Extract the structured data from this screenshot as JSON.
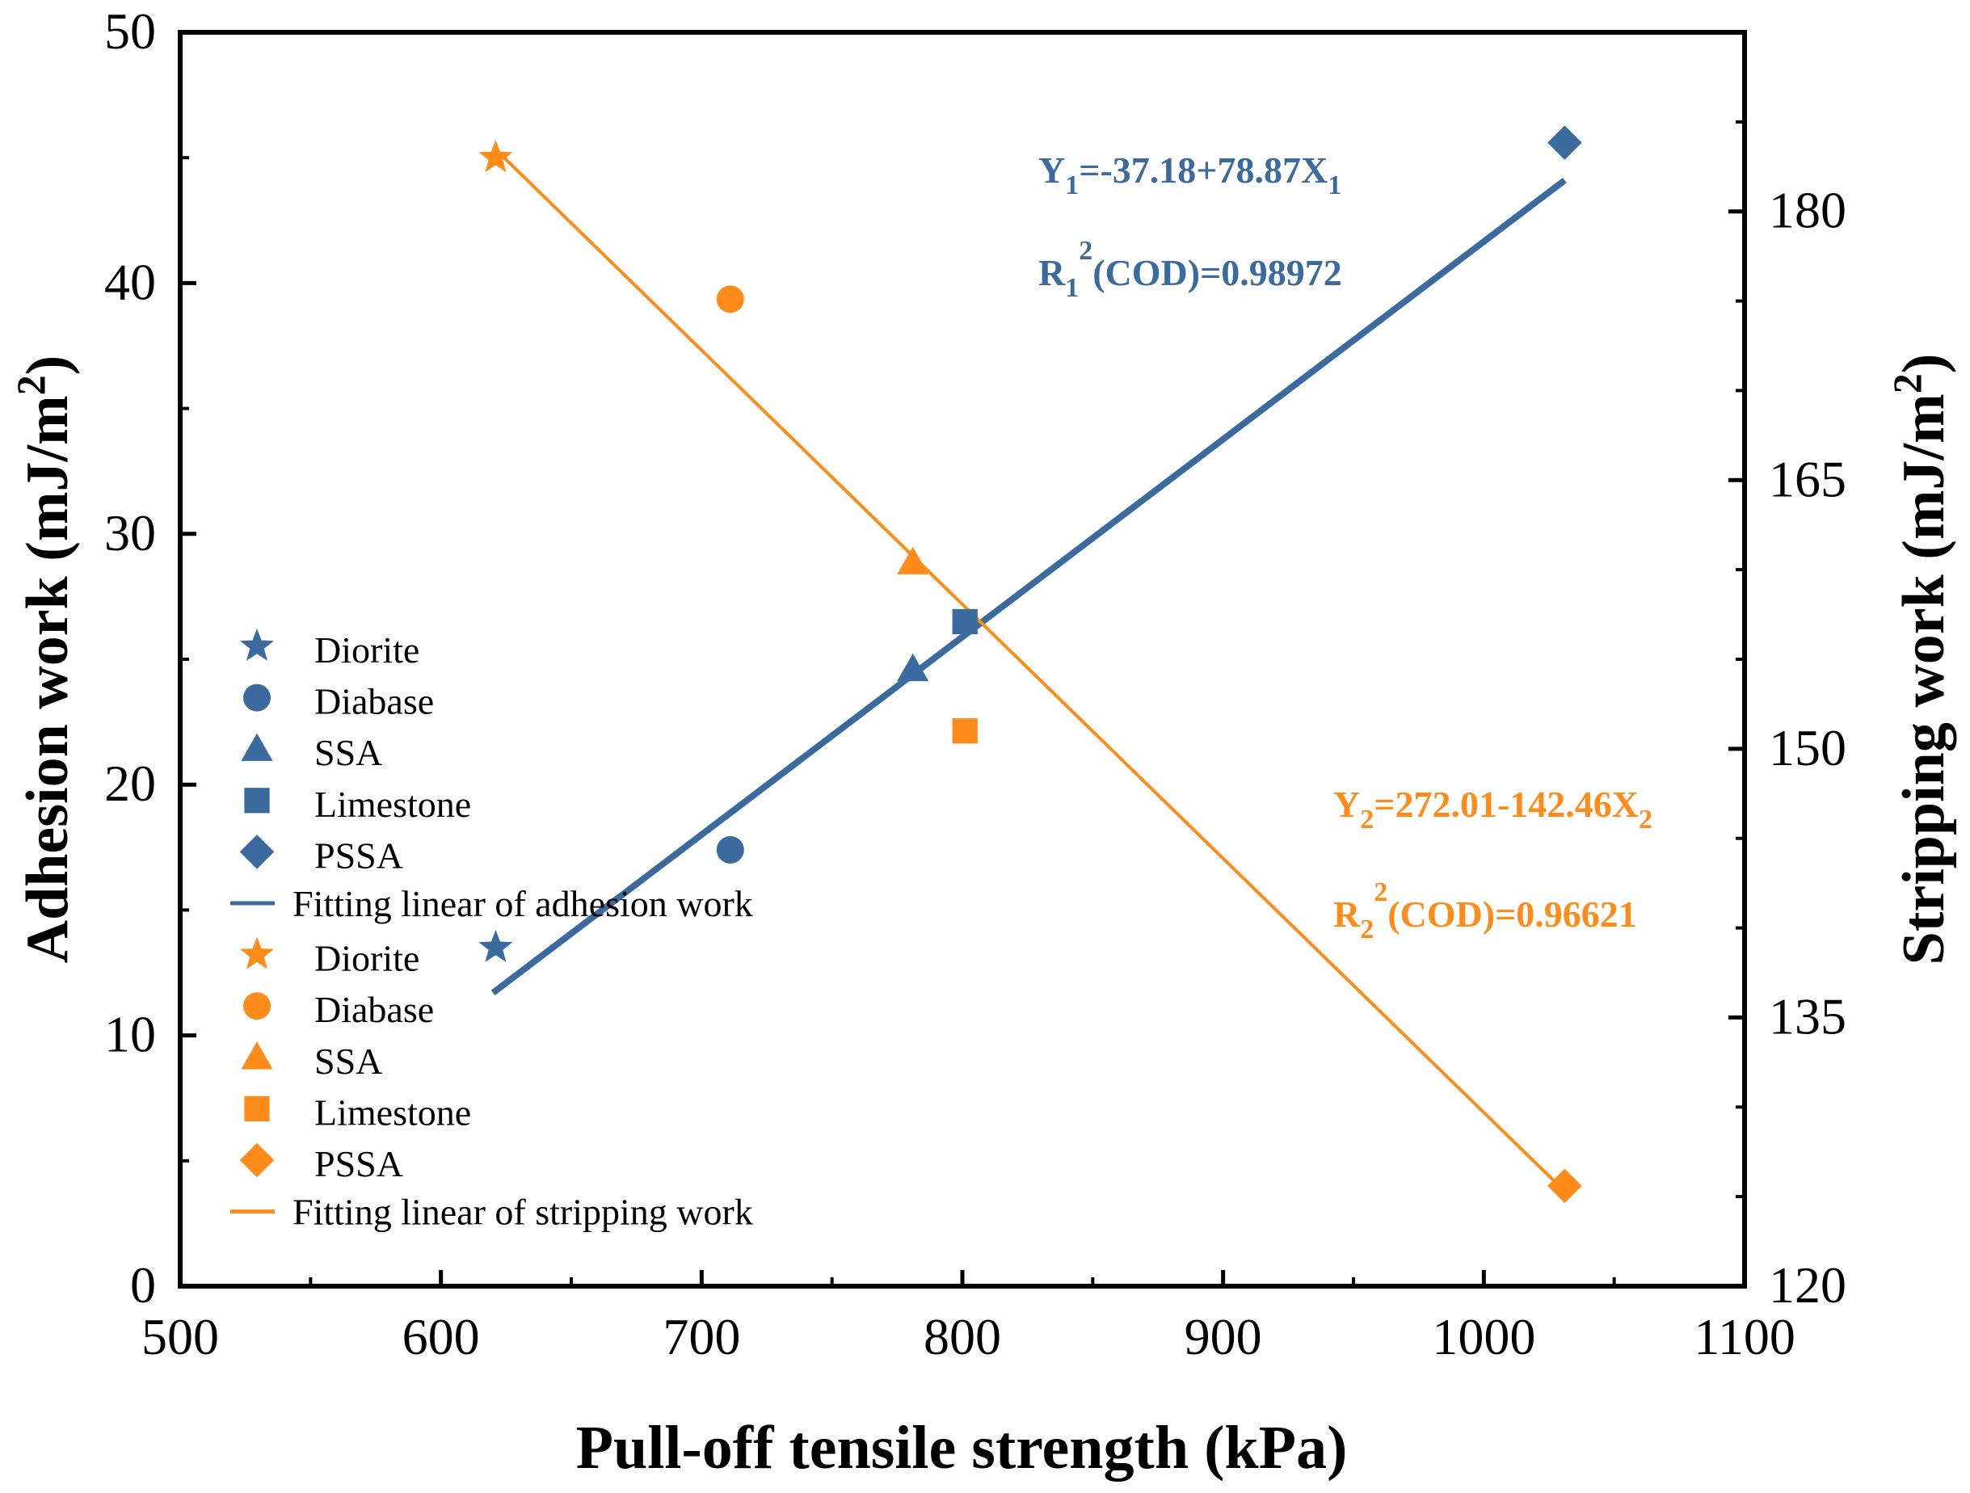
{
  "chart_data": {
    "type": "scatter",
    "xlabel": "Pull-off tensile strength (kPa)",
    "ylabel_left": "Adhesion work (mJ/m",
    "ylabel_right": "Stripping work (mJ/m",
    "ylabel_sup": "2",
    "ylabel_close": ")",
    "x_range": [
      500,
      1100
    ],
    "x_ticks": [
      500,
      600,
      700,
      800,
      900,
      1000,
      1100
    ],
    "y_left_range": [
      0,
      50
    ],
    "y_left_ticks": [
      0,
      10,
      20,
      30,
      40,
      50
    ],
    "y_right_range": [
      120,
      190
    ],
    "y_right_ticks": [
      120,
      135,
      150,
      165,
      180
    ],
    "colors": {
      "adhesion": "#3a6a9e",
      "stripping": "#ff8c1a",
      "axis": "#000000"
    },
    "series": [
      {
        "name": "Adhesion work",
        "axis": "left",
        "color": "#3a6a9e",
        "points": [
          {
            "label": "Diorite",
            "marker": "star",
            "x": 621,
            "y": 13.5
          },
          {
            "label": "Diabase",
            "marker": "circle",
            "x": 711,
            "y": 17.4
          },
          {
            "label": "SSA",
            "marker": "triangle",
            "x": 781,
            "y": 24.6
          },
          {
            "label": "Limestone",
            "marker": "square",
            "x": 801,
            "y": 26.5
          },
          {
            "label": "PSSA",
            "marker": "diamond",
            "x": 1031,
            "y": 45.6
          }
        ],
        "fit": {
          "label": "Fitting linear of adhesion work",
          "x": [
            620,
            1031
          ],
          "y": [
            11.7,
            44.1
          ]
        }
      },
      {
        "name": "Stripping work",
        "axis": "right",
        "color": "#ff8c1a",
        "points": [
          {
            "label": "Diorite",
            "marker": "star",
            "x": 621,
            "y": 183.0
          },
          {
            "label": "Diabase",
            "marker": "circle",
            "x": 711,
            "y": 175.1
          },
          {
            "label": "SSA",
            "marker": "triangle",
            "x": 781,
            "y": 160.4
          },
          {
            "label": "Limestone",
            "marker": "square",
            "x": 801,
            "y": 151.0
          },
          {
            "label": "PSSA",
            "marker": "diamond",
            "x": 1031,
            "y": 125.6
          }
        ],
        "fit": {
          "label": "Fitting linear of stripping work",
          "x": [
            620,
            1031
          ],
          "y": [
            183.6,
            125.3
          ]
        }
      }
    ],
    "annotations": {
      "eq1": {
        "Y": "Y",
        "sub": "1",
        "rest": "=-37.18+78.87X",
        "sub2": "1"
      },
      "r1": {
        "R": "R",
        "sub": "1",
        "sup": "2",
        "rest": "(COD)=0.98972"
      },
      "eq2": {
        "Y": "Y",
        "sub": "2",
        "rest": "=272.01-142.46X",
        "sub2": "2"
      },
      "r2": {
        "R": "R",
        "sub": "2",
        "sup": "2",
        "rest": "(COD)=0.96621"
      }
    }
  }
}
